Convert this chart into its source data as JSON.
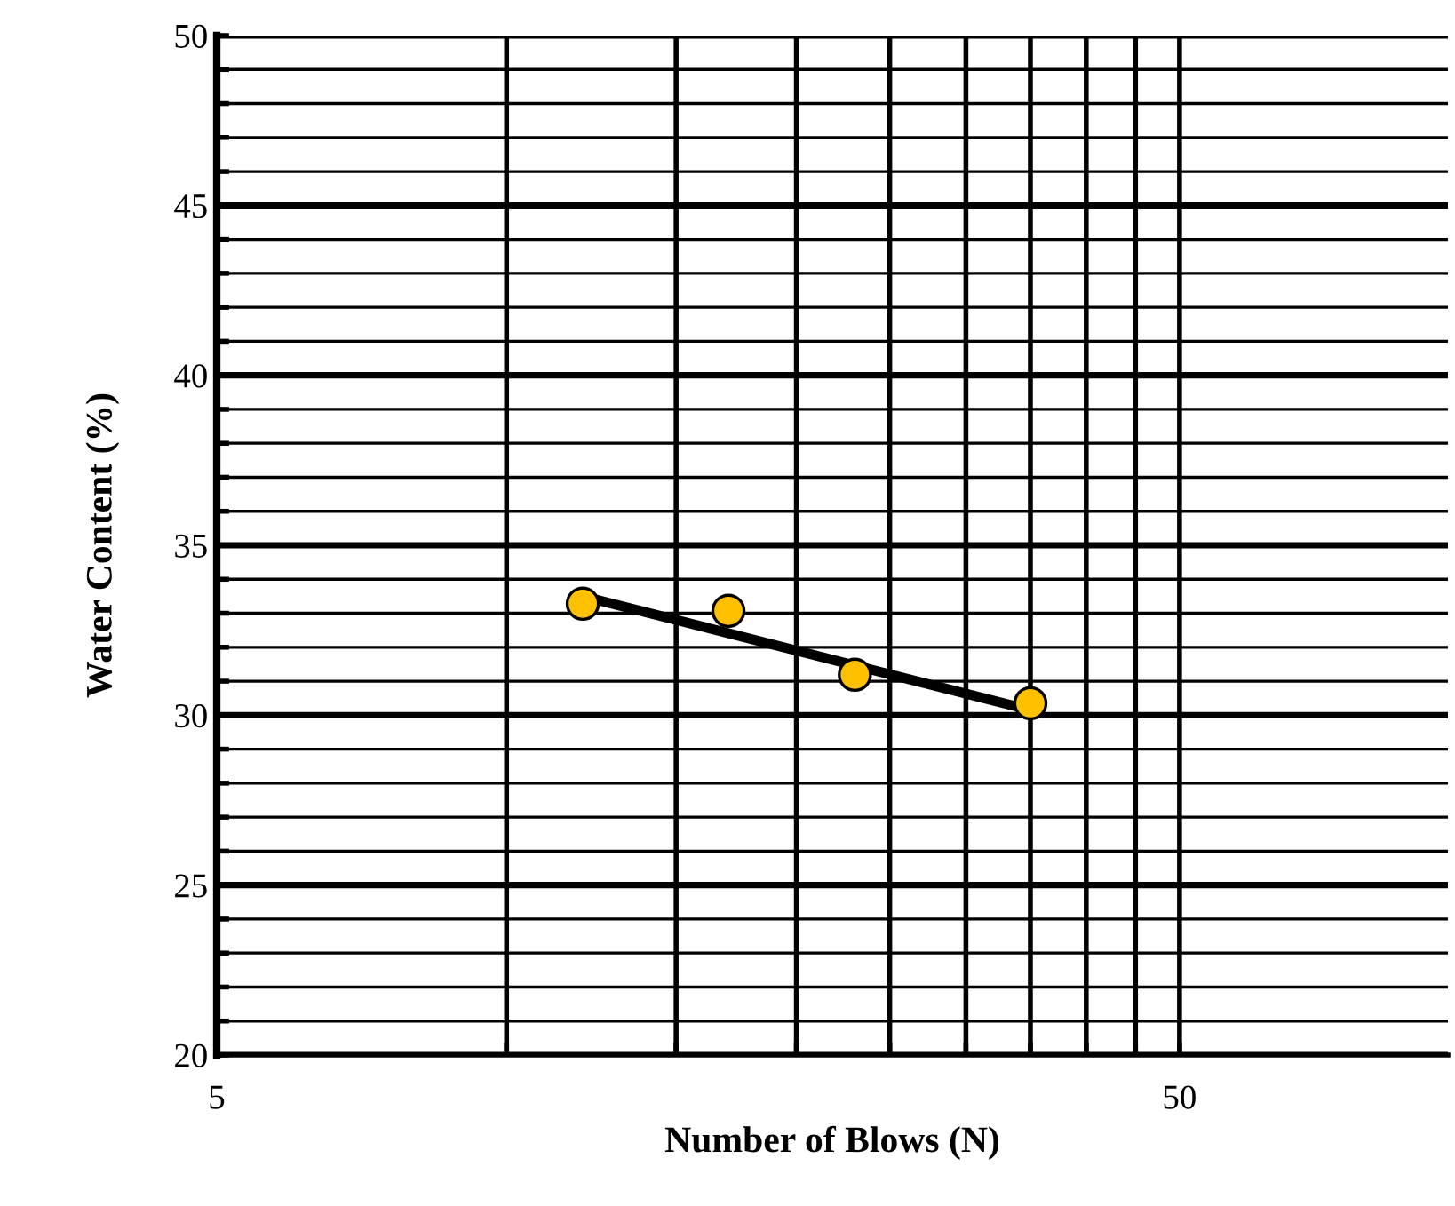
{
  "chart_data": {
    "type": "scatter",
    "xlabel": "Number of Blows (N)",
    "ylabel": "Water Content (%)",
    "log": "x",
    "grid": true,
    "xlim": [
      5,
      95
    ],
    "ylim": [
      20,
      50
    ],
    "xticks": [
      5,
      {
        "value": 10,
        "label": null
      },
      {
        "value": 15,
        "label": null
      },
      {
        "value": 20,
        "label": null
      },
      {
        "value": 25,
        "label": null
      },
      {
        "value": 30,
        "label": null
      },
      {
        "value": 35,
        "label": null
      },
      {
        "value": 40,
        "label": null
      },
      {
        "value": 45,
        "label": null
      },
      50
    ],
    "yticks": [
      20,
      {
        "value": 21,
        "label": null
      },
      {
        "value": 22,
        "label": null
      },
      {
        "value": 23,
        "label": null
      },
      {
        "value": 24,
        "label": null
      },
      25,
      {
        "value": 26,
        "label": null
      },
      {
        "value": 27,
        "label": null
      },
      {
        "value": 28,
        "label": null
      },
      {
        "value": 29,
        "label": null
      },
      30,
      {
        "value": 31,
        "label": null
      },
      {
        "value": 32,
        "label": null
      },
      {
        "value": 33,
        "label": null
      },
      {
        "value": 34,
        "label": null
      },
      35,
      {
        "value": 36,
        "label": null
      },
      {
        "value": 37,
        "label": null
      },
      {
        "value": 38,
        "label": null
      },
      {
        "value": 39,
        "label": null
      },
      40,
      {
        "value": 41,
        "label": null
      },
      {
        "value": 42,
        "label": null
      },
      {
        "value": 43,
        "label": null
      },
      {
        "value": 44,
        "label": null
      },
      45,
      {
        "value": 46,
        "label": null
      },
      {
        "value": 47,
        "label": null
      },
      {
        "value": 48,
        "label": null
      },
      {
        "value": 49,
        "label": null
      },
      50
    ],
    "series": [
      {
        "type": "line",
        "color": "#000000",
        "x": [
          12,
          35
        ],
        "values": [
          33.5,
          30.15
        ]
      },
      {
        "color": "#ffc000",
        "x": [
          12,
          17,
          23,
          35
        ],
        "values": [
          33.28,
          33.07,
          31.19,
          30.35
        ],
        "marker": "circle"
      }
    ]
  }
}
